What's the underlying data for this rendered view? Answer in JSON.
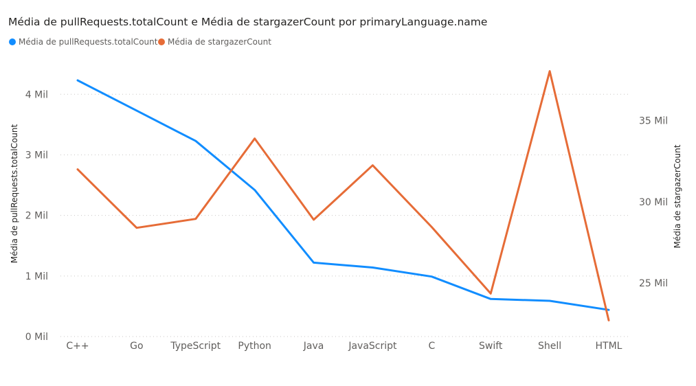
{
  "chart_data": {
    "type": "line",
    "title": "Média de pullRequests.totalCount e Média de stargazerCount por primaryLanguage.name",
    "categories": [
      "C++",
      "Go",
      "TypeScript",
      "Python",
      "Java",
      "JavaScript",
      "C",
      "Swift",
      "Shell",
      "HTML"
    ],
    "series": [
      {
        "name": "Média de pullRequests.totalCount",
        "axis": "left",
        "color": "#118DFF",
        "values": [
          4230,
          3730,
          3230,
          2420,
          1220,
          1140,
          990,
          620,
          590,
          440
        ]
      },
      {
        "name": "Média de stargazerCount",
        "axis": "right",
        "color": "#E66C37",
        "values": [
          32000,
          28400,
          28950,
          33900,
          28900,
          32250,
          28450,
          24350,
          38050,
          22700
        ]
      }
    ],
    "y_left": {
      "label": "Média de pullRequests.totalCount",
      "ylim": [
        0,
        4650
      ],
      "ticks": [
        0,
        1000,
        2000,
        3000,
        4000
      ],
      "tick_labels": [
        "0 Mil",
        "1 Mil",
        "2 Mil",
        "3 Mil",
        "4 Mil"
      ]
    },
    "y_right": {
      "label": "Média de stargazerCount",
      "ylim": [
        21700,
        39050
      ],
      "ticks": [
        25000,
        30000,
        35000
      ],
      "tick_labels": [
        "25 Mil",
        "30 Mil",
        "35 Mil"
      ]
    },
    "grid": true,
    "legend_position": "top-left"
  }
}
